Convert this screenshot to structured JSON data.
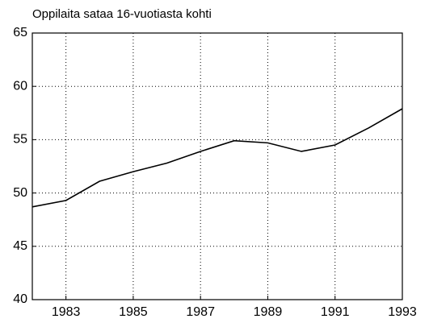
{
  "chart_data": {
    "type": "line",
    "title": "Oppilaita sataa 16-vuotiasta kohti",
    "x": [
      1982,
      1983,
      1984,
      1985,
      1986,
      1987,
      1988,
      1989,
      1990,
      1991,
      1992,
      1993
    ],
    "series": [
      {
        "color": "#000000",
        "values": [
          48.7,
          49.3,
          51.1,
          52.0,
          52.8,
          53.9,
          54.9,
          54.7,
          53.9,
          54.5,
          56.1,
          57.9
        ]
      }
    ],
    "xlim": [
      1982,
      1993
    ],
    "xticks": [
      1983,
      1985,
      1987,
      1989,
      1991,
      1993
    ],
    "ylim": [
      40,
      65
    ],
    "yticks": [
      40,
      45,
      50,
      55,
      60,
      65
    ],
    "grid": true
  }
}
